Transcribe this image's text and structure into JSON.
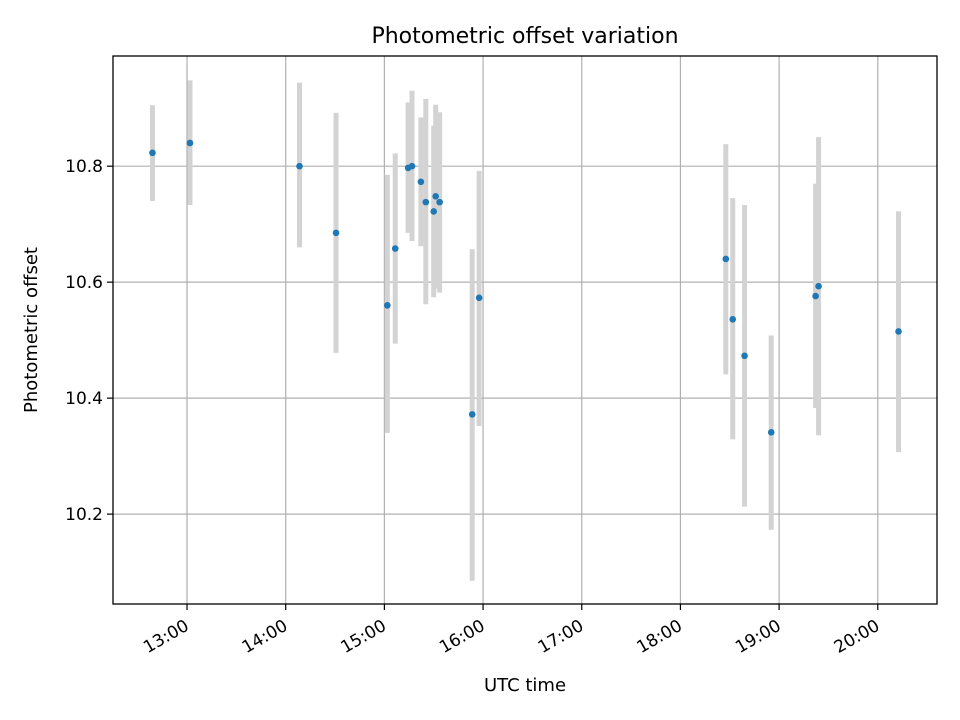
{
  "chart_data": {
    "type": "scatter",
    "title": "Photometric offset variation",
    "xlabel": "UTC time",
    "ylabel": "Photometric offset",
    "x_unit": "hours UTC",
    "xlim": [
      12.25,
      20.6
    ],
    "ylim": [
      10.045,
      10.99
    ],
    "xticks": [
      {
        "value": 13,
        "label": "13:00"
      },
      {
        "value": 14,
        "label": "14:00"
      },
      {
        "value": 15,
        "label": "15:00"
      },
      {
        "value": 16,
        "label": "16:00"
      },
      {
        "value": 17,
        "label": "17:00"
      },
      {
        "value": 18,
        "label": "18:00"
      },
      {
        "value": 19,
        "label": "19:00"
      },
      {
        "value": 20,
        "label": "20:00"
      }
    ],
    "yticks": [
      {
        "value": 10.2,
        "label": "10.2"
      },
      {
        "value": 10.4,
        "label": "10.4"
      },
      {
        "value": 10.6,
        "label": "10.6"
      },
      {
        "value": 10.8,
        "label": "10.8"
      }
    ],
    "grid": true,
    "colors": {
      "point": "#1f77b4",
      "errorbar": "#d3d3d3",
      "grid": "#b0b0b0"
    },
    "points": [
      {
        "x": 12.65,
        "y": 10.823,
        "lo": 10.74,
        "hi": 10.905
      },
      {
        "x": 13.03,
        "y": 10.84,
        "lo": 10.733,
        "hi": 10.948
      },
      {
        "x": 14.14,
        "y": 10.8,
        "lo": 10.66,
        "hi": 10.944
      },
      {
        "x": 14.51,
        "y": 10.685,
        "lo": 10.478,
        "hi": 10.892
      },
      {
        "x": 15.03,
        "y": 10.56,
        "lo": 10.34,
        "hi": 10.785
      },
      {
        "x": 15.11,
        "y": 10.658,
        "lo": 10.494,
        "hi": 10.822
      },
      {
        "x": 15.24,
        "y": 10.797,
        "lo": 10.685,
        "hi": 10.91
      },
      {
        "x": 15.28,
        "y": 10.8,
        "lo": 10.671,
        "hi": 10.93
      },
      {
        "x": 15.37,
        "y": 10.773,
        "lo": 10.662,
        "hi": 10.884
      },
      {
        "x": 15.42,
        "y": 10.738,
        "lo": 10.562,
        "hi": 10.916
      },
      {
        "x": 15.5,
        "y": 10.722,
        "lo": 10.574,
        "hi": 10.87
      },
      {
        "x": 15.52,
        "y": 10.748,
        "lo": 10.589,
        "hi": 10.906
      },
      {
        "x": 15.56,
        "y": 10.738,
        "lo": 10.582,
        "hi": 10.893
      },
      {
        "x": 15.89,
        "y": 10.372,
        "lo": 10.085,
        "hi": 10.657
      },
      {
        "x": 15.96,
        "y": 10.573,
        "lo": 10.352,
        "hi": 10.792
      },
      {
        "x": 18.46,
        "y": 10.64,
        "lo": 10.441,
        "hi": 10.838
      },
      {
        "x": 18.53,
        "y": 10.536,
        "lo": 10.329,
        "hi": 10.745
      },
      {
        "x": 18.65,
        "y": 10.473,
        "lo": 10.213,
        "hi": 10.733
      },
      {
        "x": 18.92,
        "y": 10.341,
        "lo": 10.173,
        "hi": 10.508
      },
      {
        "x": 19.37,
        "y": 10.576,
        "lo": 10.383,
        "hi": 10.77
      },
      {
        "x": 19.4,
        "y": 10.593,
        "lo": 10.336,
        "hi": 10.85
      },
      {
        "x": 20.21,
        "y": 10.515,
        "lo": 10.307,
        "hi": 10.722
      }
    ]
  }
}
